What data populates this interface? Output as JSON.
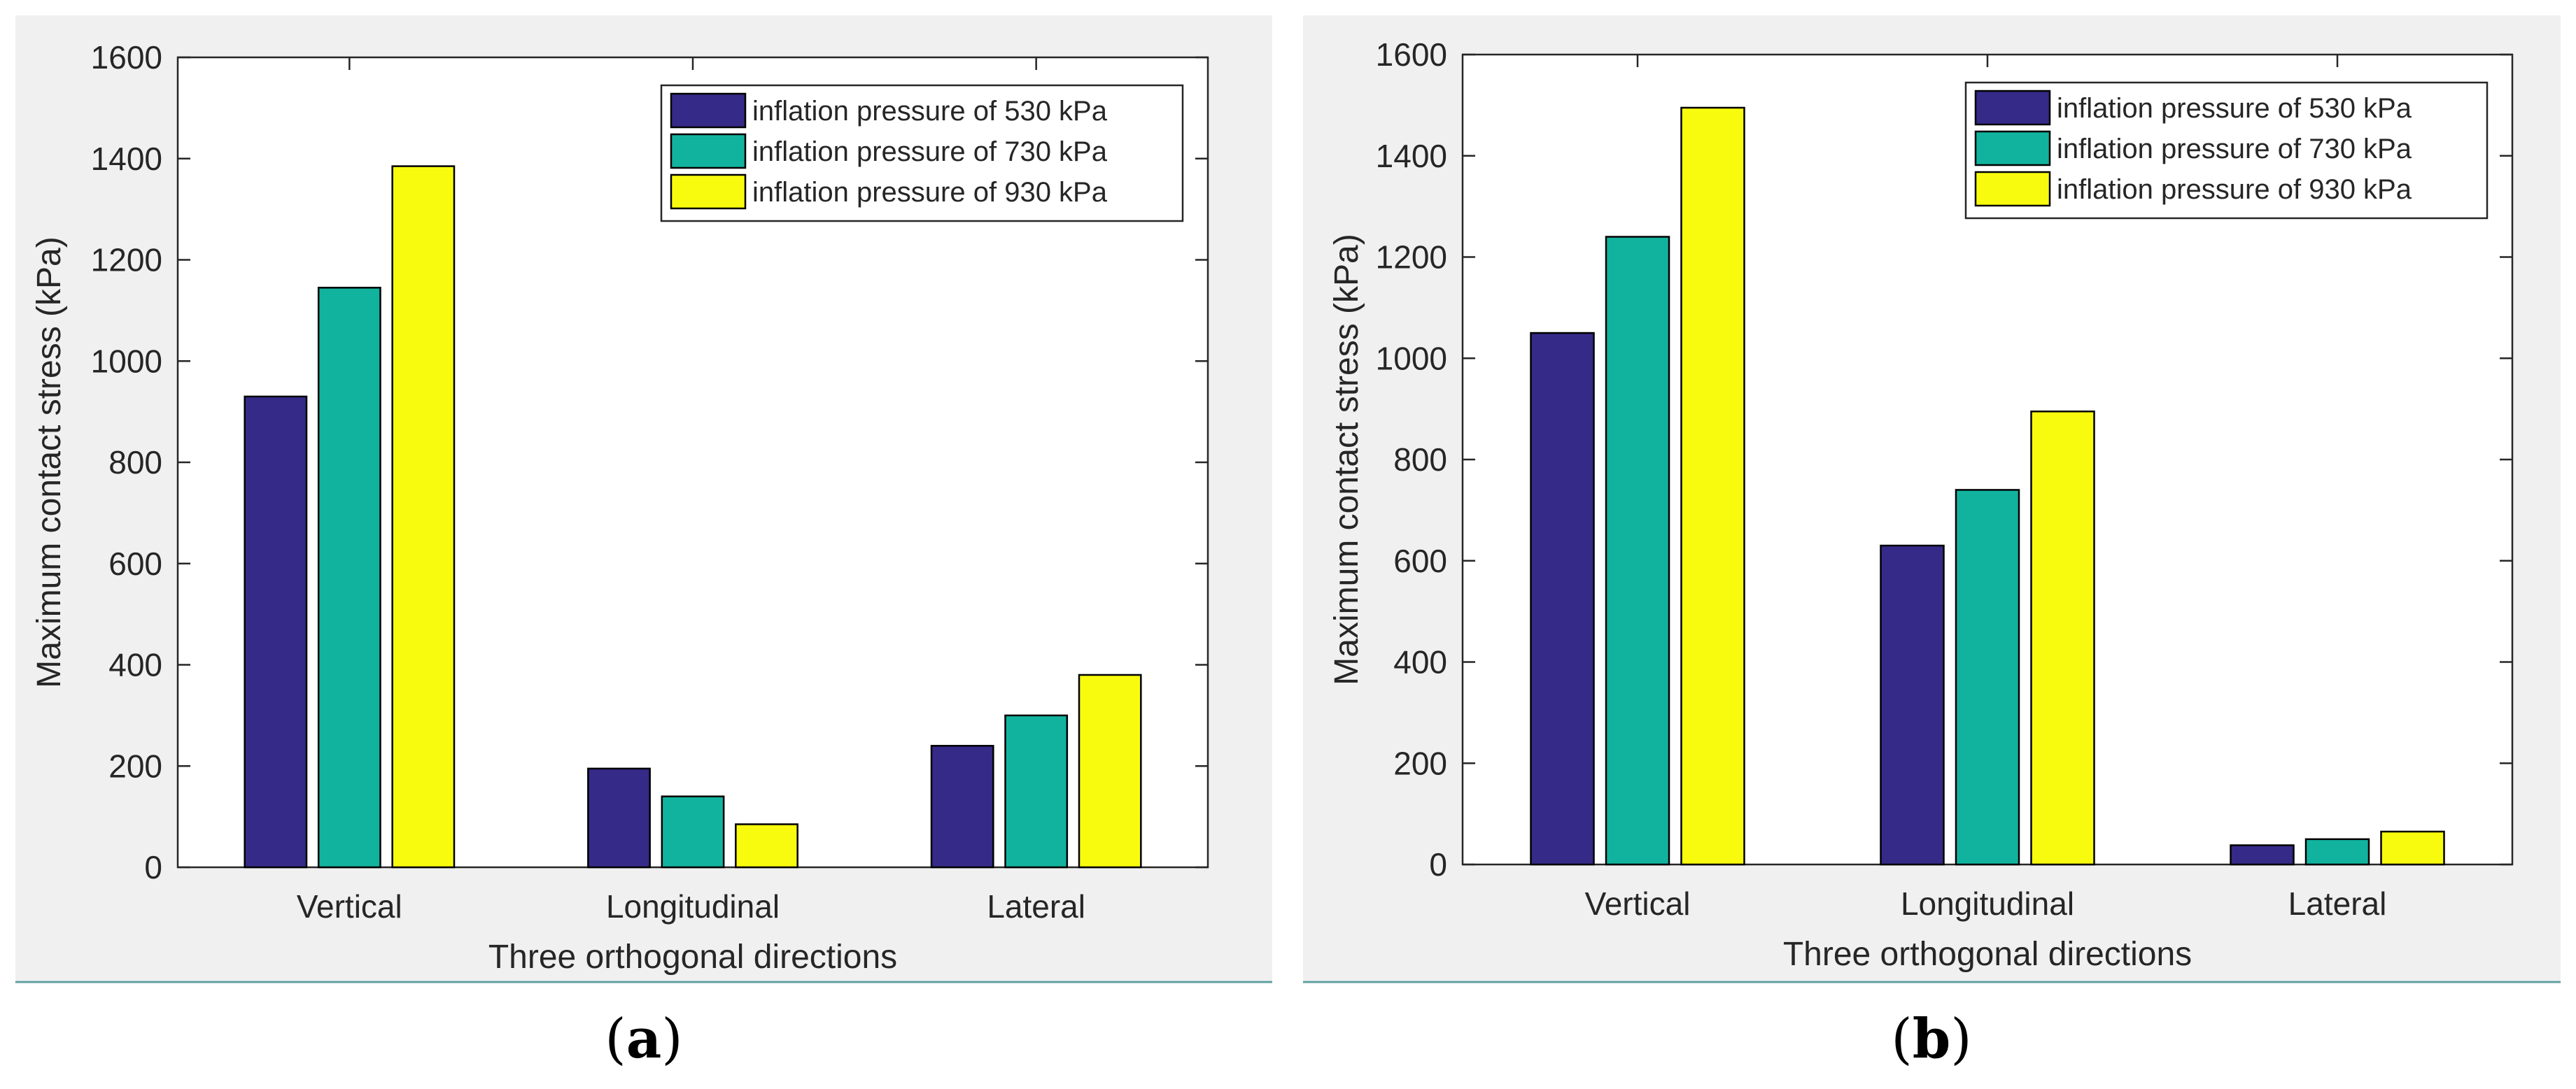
{
  "chart_data": [
    {
      "type": "bar",
      "panel": "a",
      "caption_letter": "a",
      "categories": [
        "Vertical",
        "Longitudinal",
        "Lateral"
      ],
      "series": [
        {
          "name": "inflation pressure of 530 kPa",
          "color": "#352a87",
          "values": [
            930,
            195,
            240
          ]
        },
        {
          "name": "inflation pressure of 730 kPa",
          "color": "#12b39e",
          "values": [
            1145,
            140,
            300
          ]
        },
        {
          "name": "inflation pressure of 930 kPa",
          "color": "#f9fb0e",
          "values": [
            1385,
            85,
            380
          ]
        }
      ],
      "xlabel": "Three orthogonal directions",
      "ylabel": "Maximum contact stress (kPa)",
      "ylim": [
        0,
        1600
      ],
      "yticks": [
        0,
        200,
        400,
        600,
        800,
        1000,
        1200,
        1400,
        1600
      ],
      "legend_position": "top-right",
      "grid": false
    },
    {
      "type": "bar",
      "panel": "b",
      "caption_letter": "b",
      "categories": [
        "Vertical",
        "Longitudinal",
        "Lateral"
      ],
      "series": [
        {
          "name": "inflation pressure of 530 kPa",
          "color": "#352a87",
          "values": [
            1050,
            630,
            38
          ]
        },
        {
          "name": "inflation pressure of 730 kPa",
          "color": "#12b39e",
          "values": [
            1240,
            740,
            50
          ]
        },
        {
          "name": "inflation pressure of 930 kPa",
          "color": "#f9fb0e",
          "values": [
            1495,
            895,
            65
          ]
        }
      ],
      "xlabel": "Three orthogonal directions",
      "ylabel": "Maximum contact stress (kPa)",
      "ylim": [
        0,
        1600
      ],
      "yticks": [
        0,
        200,
        400,
        600,
        800,
        1000,
        1200,
        1400,
        1600
      ],
      "legend_position": "top-right",
      "grid": false
    }
  ]
}
